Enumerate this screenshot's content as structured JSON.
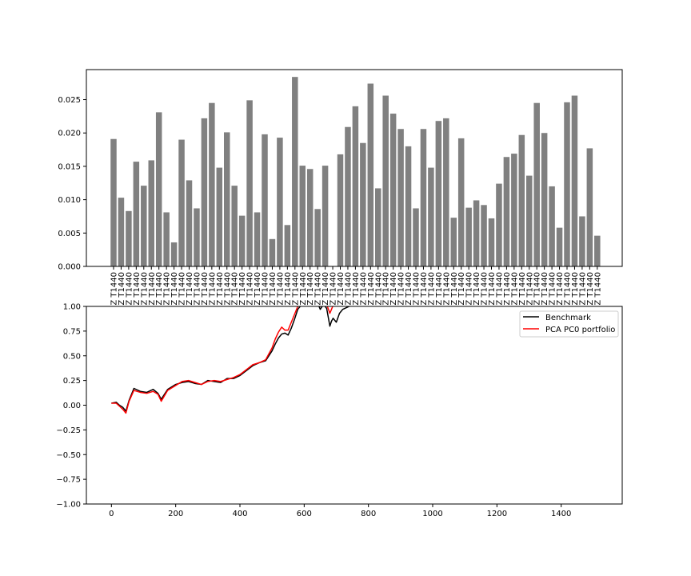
{
  "chart_data": [
    {
      "type": "bar",
      "title": "",
      "xlabel": "",
      "ylabel": "",
      "ylim": [
        0,
        0.0295
      ],
      "yticks": [
        "0.000",
        "0.005",
        "0.010",
        "0.015",
        "0.020",
        "0.025"
      ],
      "ytick_values": [
        0,
        0.005,
        0.01,
        0.015,
        0.02,
        0.025
      ],
      "bar_color": "#808080",
      "category_label": "Z T1440",
      "values": [
        0.0191,
        0.0103,
        0.0083,
        0.0157,
        0.0121,
        0.0159,
        0.0231,
        0.0081,
        0.0036,
        0.019,
        0.0129,
        0.0087,
        0.0222,
        0.0245,
        0.0148,
        0.0201,
        0.0121,
        0.0076,
        0.0249,
        0.0081,
        0.0198,
        0.0041,
        0.0193,
        0.0062,
        0.0284,
        0.0151,
        0.0146,
        0.0086,
        0.0151,
        0.0,
        0.0168,
        0.0209,
        0.024,
        0.0185,
        0.0274,
        0.0117,
        0.0256,
        0.0229,
        0.0206,
        0.018,
        0.0087,
        0.0206,
        0.0148,
        0.0218,
        0.0222,
        0.0073,
        0.0192,
        0.0088,
        0.0099,
        0.0092,
        0.0072,
        0.0124,
        0.0164,
        0.0169,
        0.0197,
        0.0136,
        0.0245,
        0.02,
        0.012,
        0.0058,
        0.0246,
        0.0256,
        0.0075,
        0.0177,
        0.0046
      ],
      "grid": false
    },
    {
      "type": "line",
      "title": "",
      "xlabel": "",
      "ylabel": "",
      "xlim": [
        -78,
        1590
      ],
      "ylim": [
        -1.0,
        1.0
      ],
      "xticks": [
        "0",
        "200",
        "400",
        "600",
        "800",
        "1000",
        "1200",
        "1400"
      ],
      "xtick_values": [
        0,
        200,
        400,
        600,
        800,
        1000,
        1200,
        1400
      ],
      "yticks": [
        "−1.00",
        "−0.75",
        "−0.50",
        "−0.25",
        "0.00",
        "0.25",
        "0.50",
        "0.75",
        "1.00"
      ],
      "ytick_values": [
        -1.0,
        -0.75,
        -0.5,
        -0.25,
        0,
        0.25,
        0.5,
        0.75,
        1.0
      ],
      "legend_position": "top-right",
      "grid": false,
      "series": [
        {
          "name": "Benchmark",
          "color": "#000000",
          "x": [
            0,
            15,
            25,
            35,
            45,
            55,
            70,
            90,
            110,
            130,
            145,
            155,
            175,
            200,
            220,
            240,
            260,
            280,
            300,
            320,
            340,
            360,
            380,
            400,
            420,
            440,
            460,
            480,
            500,
            510,
            520,
            530,
            540,
            550,
            560,
            570,
            580,
            600,
            620,
            640,
            650,
            660,
            670,
            680,
            685,
            690,
            700,
            710,
            720,
            740,
            760,
            780,
            800
          ],
          "y": [
            0.02,
            0.03,
            0.0,
            -0.02,
            -0.06,
            0.05,
            0.17,
            0.14,
            0.13,
            0.16,
            0.12,
            0.06,
            0.16,
            0.21,
            0.23,
            0.24,
            0.22,
            0.21,
            0.25,
            0.24,
            0.23,
            0.27,
            0.27,
            0.3,
            0.35,
            0.4,
            0.43,
            0.45,
            0.55,
            0.62,
            0.68,
            0.72,
            0.73,
            0.71,
            0.78,
            0.87,
            0.97,
            1.05,
            1.1,
            1.05,
            0.97,
            1.02,
            0.98,
            0.8,
            0.85,
            0.88,
            0.84,
            0.93,
            0.97,
            1.0,
            1.05,
            1.1,
            1.15
          ]
        },
        {
          "name": "PCA PC0 portfolio",
          "color": "#ff0000",
          "x": [
            0,
            15,
            25,
            35,
            45,
            55,
            70,
            90,
            110,
            130,
            145,
            155,
            175,
            200,
            220,
            240,
            260,
            280,
            300,
            320,
            340,
            360,
            380,
            400,
            420,
            440,
            460,
            480,
            500,
            510,
            520,
            530,
            540,
            550,
            560,
            570,
            580,
            600,
            620,
            640,
            650,
            660,
            670,
            680,
            685,
            690,
            700
          ],
          "y": [
            0.02,
            0.02,
            -0.01,
            -0.04,
            -0.08,
            0.04,
            0.15,
            0.13,
            0.12,
            0.14,
            0.11,
            0.04,
            0.15,
            0.2,
            0.24,
            0.25,
            0.23,
            0.21,
            0.24,
            0.25,
            0.24,
            0.26,
            0.28,
            0.31,
            0.36,
            0.41,
            0.43,
            0.46,
            0.58,
            0.67,
            0.74,
            0.79,
            0.76,
            0.76,
            0.84,
            0.92,
            1.0,
            1.08,
            1.12,
            1.08,
            1.0,
            1.06,
            1.02,
            0.93,
            0.97,
            1.01,
            1.05
          ]
        }
      ]
    }
  ]
}
